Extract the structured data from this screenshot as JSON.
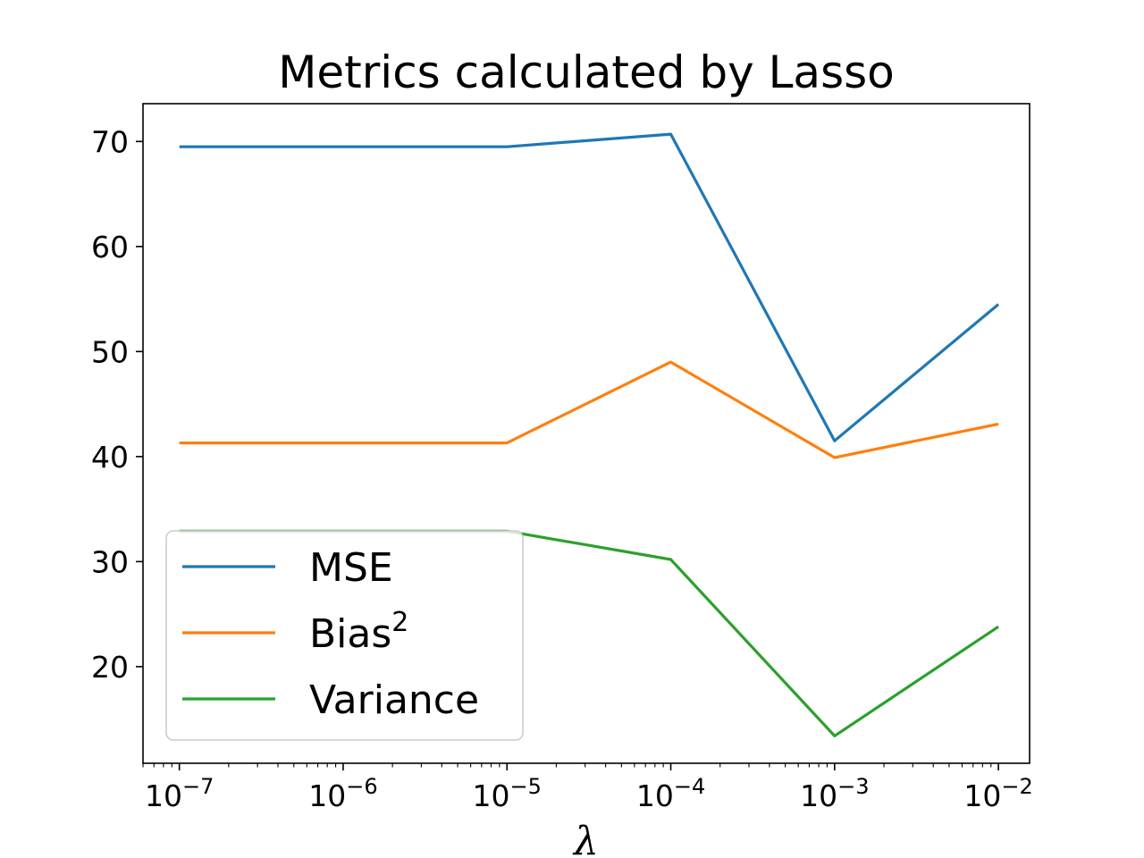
{
  "chart_data": {
    "type": "line",
    "title": "Metrics calculated by Lasso",
    "xlabel": "λ",
    "ylabel": "",
    "xscale": "log",
    "xlim": [
      6e-08,
      0.0155
    ],
    "ylim": [
      10.8,
      73.6
    ],
    "x": [
      1e-07,
      1e-05,
      0.0001,
      0.001,
      0.01
    ],
    "x_ticks": [
      {
        "value": 1e-07,
        "base": "10",
        "exp": "−7"
      },
      {
        "value": 1e-06,
        "base": "10",
        "exp": "−6"
      },
      {
        "value": 1e-05,
        "base": "10",
        "exp": "−5"
      },
      {
        "value": 0.0001,
        "base": "10",
        "exp": "−4"
      },
      {
        "value": 0.001,
        "base": "10",
        "exp": "−3"
      },
      {
        "value": 0.01,
        "base": "10",
        "exp": "−2"
      }
    ],
    "y_ticks": [
      20,
      30,
      40,
      50,
      60,
      70
    ],
    "grid": false,
    "legend_position": "lower-left",
    "series": [
      {
        "name": "MSE",
        "name_base": "MSE",
        "name_sup": "",
        "color": "#1f77b4",
        "values": [
          69.5,
          69.5,
          70.7,
          41.5,
          54.5
        ]
      },
      {
        "name": "Bias2",
        "name_base": "Bias",
        "name_sup": "2",
        "color": "#ff7f0e",
        "values": [
          41.3,
          41.3,
          49.0,
          39.9,
          43.1
        ]
      },
      {
        "name": "Variance",
        "name_base": "Variance",
        "name_sup": "",
        "color": "#2ca02c",
        "values": [
          32.9,
          32.9,
          30.2,
          13.4,
          23.8
        ]
      }
    ]
  }
}
